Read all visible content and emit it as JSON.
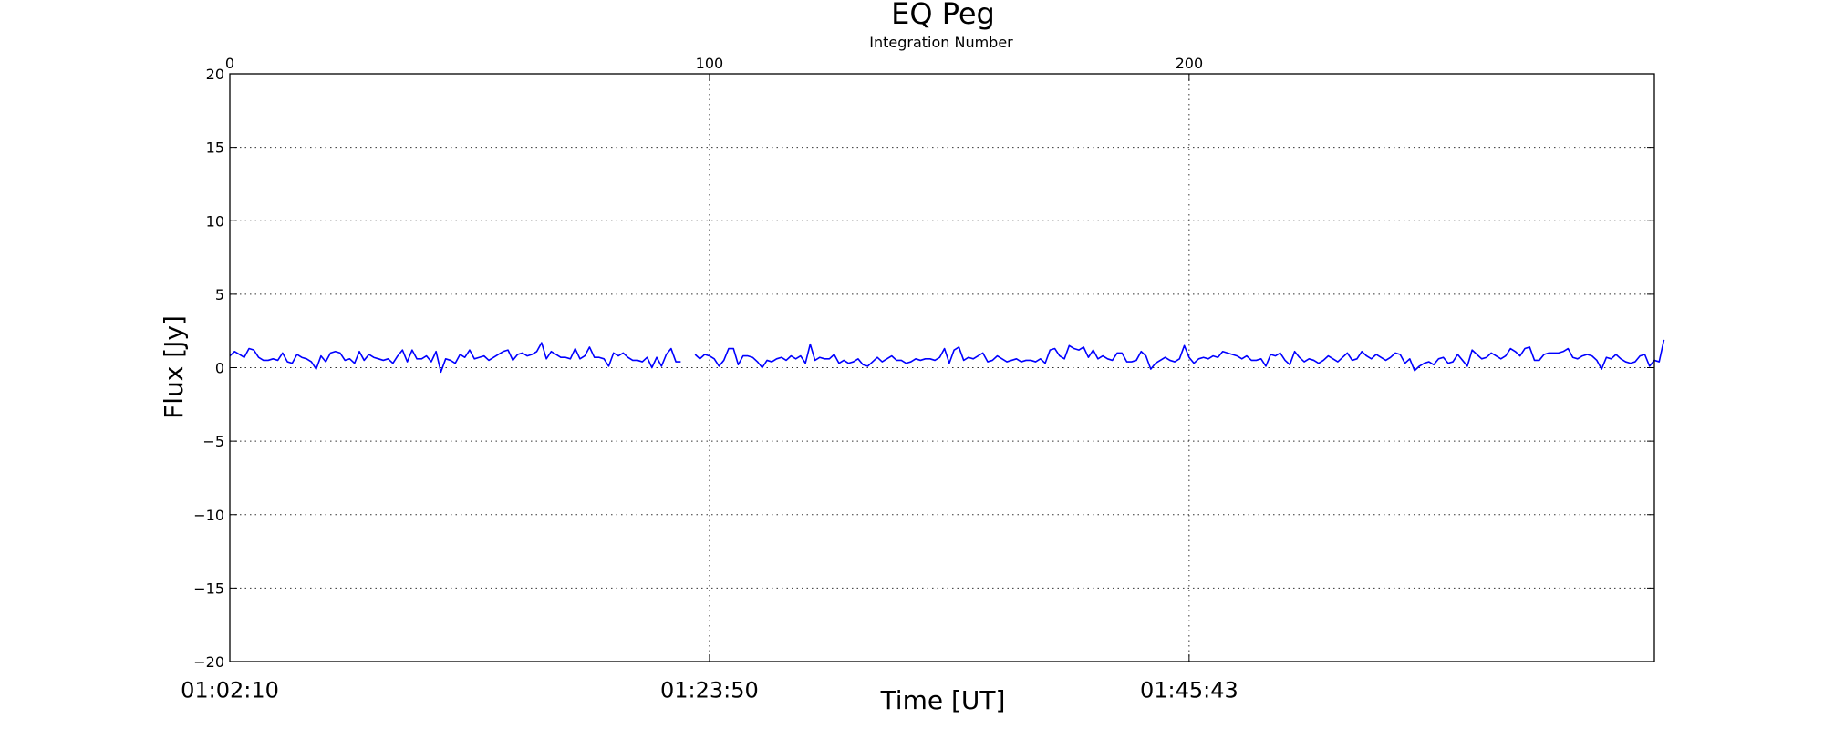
{
  "chart_data": {
    "type": "line",
    "title": "EQ Peg",
    "xlabel": "Time [UT]",
    "ylabel": "Flux [Jy]",
    "top_xlabel": "Integration Number",
    "xlim": [
      0,
      297
    ],
    "ylim": [
      -20,
      20
    ],
    "grid": true,
    "yticks": [
      20,
      15,
      10,
      5,
      0,
      -5,
      -10,
      -15,
      -20
    ],
    "ytick_labels": [
      "20",
      "15",
      "10",
      "5",
      "0",
      "−5",
      "−10",
      "−15",
      "−20"
    ],
    "top_xticks": [
      0,
      100,
      200
    ],
    "top_xtick_labels": [
      "0",
      "100",
      "200"
    ],
    "bottom_xticks": [
      0,
      100,
      200
    ],
    "bottom_xtick_labels": [
      "01:02:10",
      "01:23:50",
      "01:45:43"
    ],
    "line_color": "#0000ff",
    "series": [
      {
        "segments": [
          {
            "start": 0,
            "values": [
              0.8,
              1.1,
              0.9,
              0.7,
              1.3,
              1.2,
              0.7,
              0.5,
              0.5,
              0.6,
              0.5,
              1.0,
              0.4,
              0.3,
              0.9,
              0.7,
              0.6,
              0.4,
              -0.1,
              0.8,
              0.4,
              1.0,
              1.1,
              1.0,
              0.5,
              0.6,
              0.3,
              1.1,
              0.5,
              0.9,
              0.7,
              0.6,
              0.5,
              0.6,
              0.3,
              0.8,
              1.2,
              0.4,
              1.2,
              0.6,
              0.6,
              0.8,
              0.4,
              1.1,
              -0.3,
              0.6,
              0.5,
              0.3,
              0.9,
              0.7,
              1.2,
              0.6,
              0.7,
              0.8,
              0.5,
              0.7,
              0.9,
              1.1,
              1.2,
              0.5,
              0.9,
              1.0,
              0.8,
              0.9,
              1.1,
              1.7,
              0.6,
              1.1,
              0.9,
              0.7,
              0.7,
              0.6,
              1.3,
              0.6,
              0.8,
              1.4,
              0.7,
              0.7,
              0.6,
              0.1,
              1.0,
              0.8,
              1.0,
              0.7,
              0.5,
              0.5,
              0.4,
              0.7,
              0.0,
              0.7,
              0.1,
              0.9,
              1.3,
              0.4,
              0.4
            ]
          },
          {
            "start": 97,
            "values": [
              0.9,
              0.6,
              0.9,
              0.8,
              0.6,
              0.1,
              0.5,
              1.3,
              1.3,
              0.2,
              0.8,
              0.8,
              0.7,
              0.4,
              0.0,
              0.5,
              0.4,
              0.6,
              0.7,
              0.5,
              0.8,
              0.6,
              0.8,
              0.3,
              1.6,
              0.5,
              0.7,
              0.6,
              0.6,
              0.9,
              0.3,
              0.5,
              0.3,
              0.4,
              0.6,
              0.2,
              0.1,
              0.4,
              0.7,
              0.4,
              0.6,
              0.8,
              0.5,
              0.5,
              0.3,
              0.4,
              0.6,
              0.5,
              0.6,
              0.6,
              0.5,
              0.7,
              1.3,
              0.3,
              1.2,
              1.4,
              0.5,
              0.7,
              0.6,
              0.8,
              1.0,
              0.4,
              0.5,
              0.8,
              0.6,
              0.4,
              0.5,
              0.6,
              0.4,
              0.5,
              0.5,
              0.4,
              0.6,
              0.3,
              1.2,
              1.3,
              0.8,
              0.6,
              1.5,
              1.3,
              1.2,
              1.4,
              0.7,
              1.2,
              0.6,
              0.8,
              0.6,
              0.5,
              1.0,
              1.0,
              0.4,
              0.4,
              0.5,
              1.1,
              0.8,
              -0.1,
              0.3,
              0.5,
              0.7,
              0.5,
              0.4,
              0.6,
              1.5,
              0.7,
              0.3,
              0.6,
              0.7,
              0.6,
              0.8,
              0.7,
              1.1,
              1.0,
              0.9,
              0.8,
              0.6,
              0.8,
              0.5,
              0.5,
              0.6,
              0.1,
              0.9,
              0.8,
              1.0,
              0.5,
              0.2,
              1.1,
              0.7,
              0.4,
              0.6,
              0.5,
              0.3,
              0.5,
              0.8,
              0.6,
              0.4,
              0.7,
              1.0,
              0.5,
              0.6,
              1.1,
              0.8,
              0.6,
              0.9,
              0.7,
              0.5,
              0.7,
              1.0,
              0.9,
              0.3,
              0.6,
              -0.2,
              0.1,
              0.3,
              0.4,
              0.2,
              0.6,
              0.7,
              0.3,
              0.4,
              0.9,
              0.5,
              0.1,
              1.2,
              0.9,
              0.6,
              0.7,
              1.0,
              0.8,
              0.6,
              0.8,
              1.3,
              1.1,
              0.8,
              1.3,
              1.4,
              0.5,
              0.5,
              0.9,
              1.0,
              1.0,
              1.0,
              1.1,
              1.3,
              0.7,
              0.6,
              0.8,
              0.9,
              0.8,
              0.5,
              -0.1,
              0.7,
              0.6,
              0.9,
              0.6,
              0.4,
              0.3,
              0.4,
              0.8,
              0.9,
              0.1,
              0.5,
              0.4,
              1.9
            ]
          }
        ]
      }
    ]
  }
}
